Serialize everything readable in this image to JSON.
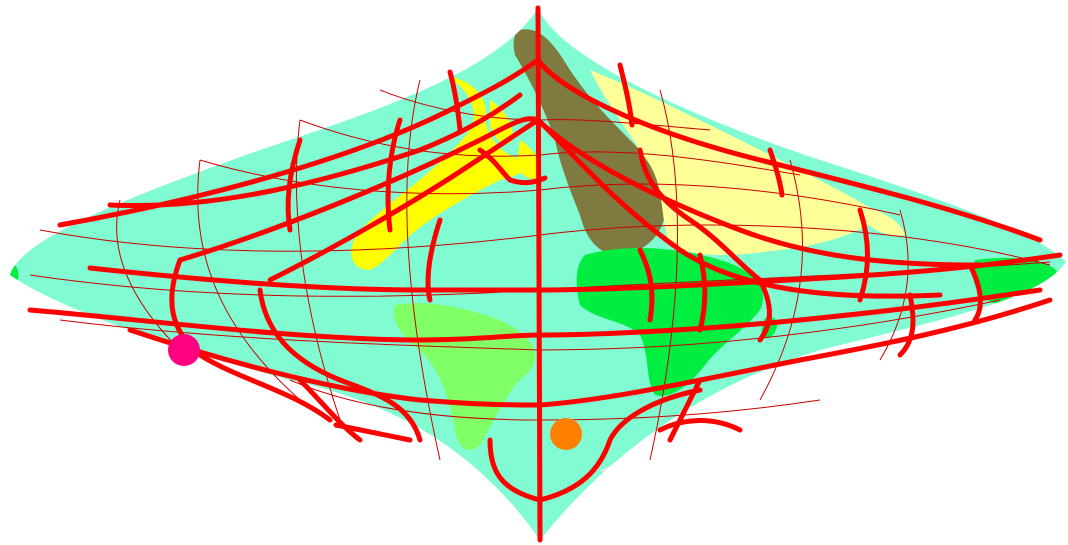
{
  "map": {
    "projection_shape": "star-like lens (two-point-tipped) world projection",
    "colors": {
      "ocean": "#80fbd2",
      "outside": "#ffffff",
      "undefined_region": "#e4e4e4",
      "north_america": "#ffff00",
      "south_america": "#80ff66",
      "eurasia_west": "#7f7b40",
      "eurasia_east": "#ffff99",
      "africa": "#00ee40",
      "australia": "#00ee40",
      "grid_thick": "#ff0000",
      "grid_thin": "#cc0000"
    },
    "markers": [
      {
        "name": "magenta-marker",
        "color": "#ff0080"
      },
      {
        "name": "orange-marker",
        "color": "#ff7f00"
      }
    ]
  }
}
